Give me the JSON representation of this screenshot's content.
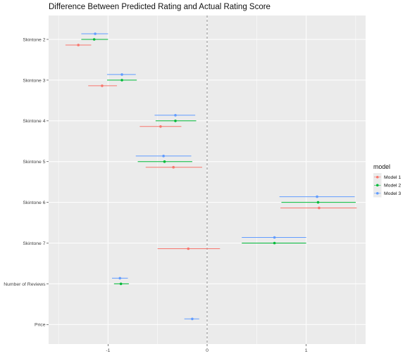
{
  "chart_data": {
    "type": "scatter",
    "title": "Difference Between Predicted Rating and Actual Rating Score",
    "categories": [
      "Skintone 2",
      "Skintone 3",
      "Skintone 4",
      "Skintone 5",
      "Skintone 6",
      "Skintone 7",
      "Number of Reviews",
      "Price"
    ],
    "x_ticks": [
      "-1",
      "0",
      "1"
    ],
    "xlim": [
      -1.6,
      1.6
    ],
    "reference_line": 0,
    "legend": {
      "title": "model",
      "position": "right"
    },
    "series": [
      {
        "name": "Model 1",
        "color": "#F8766D",
        "points": [
          {
            "category": "Skintone 2",
            "estimate": -1.3,
            "low": -1.43,
            "high": -1.17
          },
          {
            "category": "Skintone 3",
            "estimate": -1.06,
            "low": -1.2,
            "high": -0.91
          },
          {
            "category": "Skintone 4",
            "estimate": -0.47,
            "low": -0.68,
            "high": -0.26
          },
          {
            "category": "Skintone 5",
            "estimate": -0.34,
            "low": -0.62,
            "high": -0.05
          },
          {
            "category": "Skintone 6",
            "estimate": 1.13,
            "low": 0.74,
            "high": 1.51
          },
          {
            "category": "Skintone 7",
            "estimate": -0.19,
            "low": -0.5,
            "high": 0.13
          }
        ]
      },
      {
        "name": "Model 2",
        "color": "#00BA38",
        "points": [
          {
            "category": "Skintone 2",
            "estimate": -1.14,
            "low": -1.27,
            "high": -1.0
          },
          {
            "category": "Skintone 3",
            "estimate": -0.86,
            "low": -1.01,
            "high": -0.71
          },
          {
            "category": "Skintone 4",
            "estimate": -0.32,
            "low": -0.52,
            "high": -0.11
          },
          {
            "category": "Skintone 5",
            "estimate": -0.43,
            "low": -0.7,
            "high": -0.15
          },
          {
            "category": "Skintone 6",
            "estimate": 1.12,
            "low": 0.75,
            "high": 1.5
          },
          {
            "category": "Skintone 7",
            "estimate": 0.68,
            "low": 0.35,
            "high": 1.0
          },
          {
            "category": "Number of Reviews",
            "estimate": -0.87,
            "low": -0.94,
            "high": -0.79
          }
        ]
      },
      {
        "name": "Model 3",
        "color": "#619CFF",
        "points": [
          {
            "category": "Skintone 2",
            "estimate": -1.13,
            "low": -1.27,
            "high": -1.0
          },
          {
            "category": "Skintone 3",
            "estimate": -0.86,
            "low": -1.01,
            "high": -0.72
          },
          {
            "category": "Skintone 4",
            "estimate": -0.32,
            "low": -0.53,
            "high": -0.12
          },
          {
            "category": "Skintone 5",
            "estimate": -0.44,
            "low": -0.72,
            "high": -0.16
          },
          {
            "category": "Skintone 6",
            "estimate": 1.11,
            "low": 0.73,
            "high": 1.49
          },
          {
            "category": "Skintone 7",
            "estimate": 0.68,
            "low": 0.35,
            "high": 1.0
          },
          {
            "category": "Number of Reviews",
            "estimate": -0.88,
            "low": -0.96,
            "high": -0.8
          },
          {
            "category": "Price",
            "estimate": -0.15,
            "low": -0.23,
            "high": -0.08
          }
        ]
      }
    ]
  }
}
